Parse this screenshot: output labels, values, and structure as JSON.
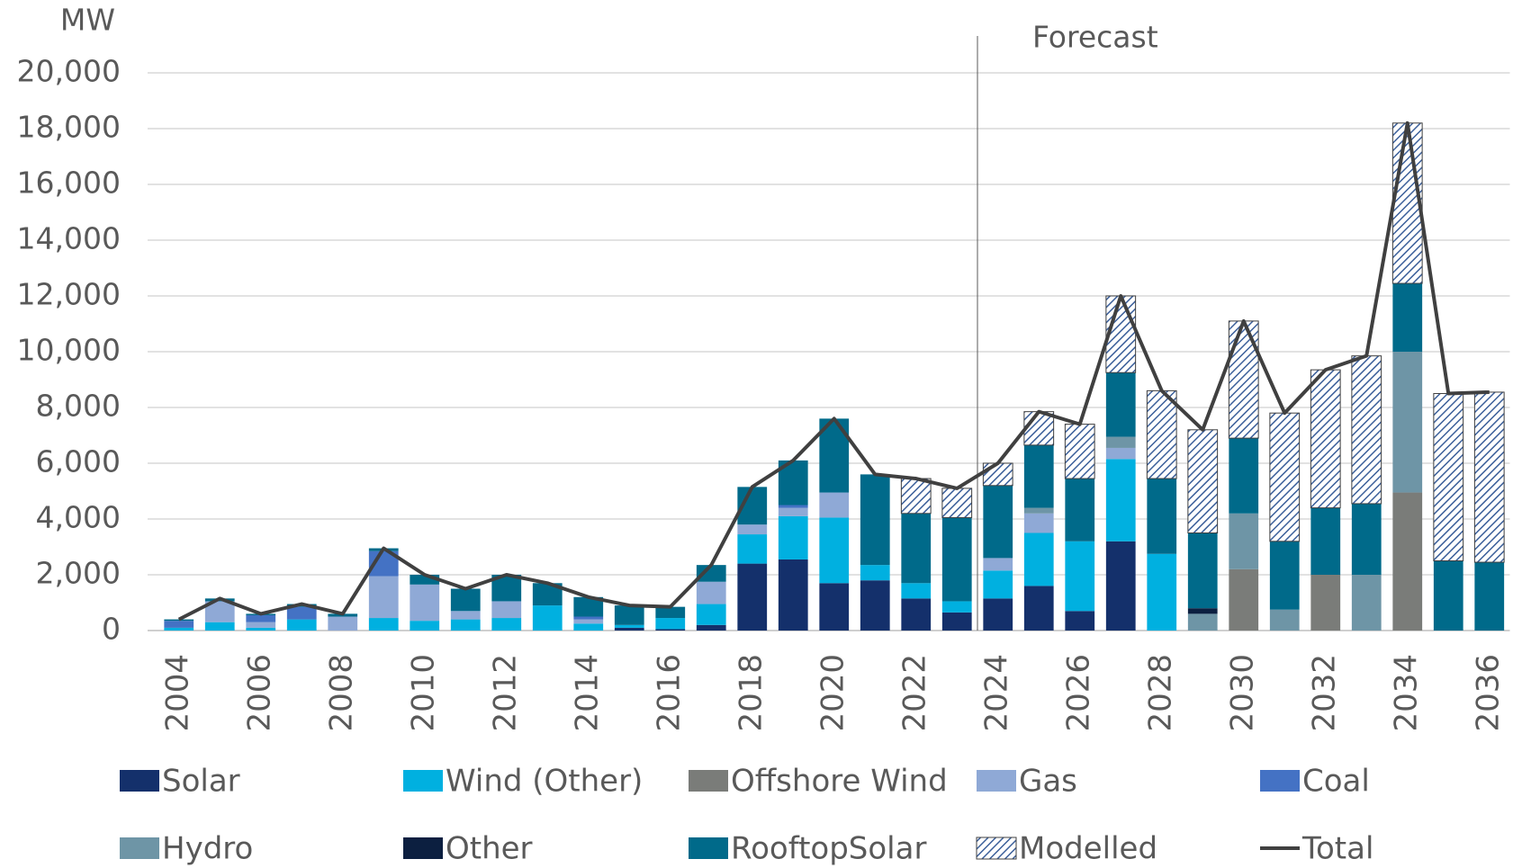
{
  "chart_data": {
    "type": "bar",
    "stacked": true,
    "y_axis_label": "MW",
    "annotation": "Forecast",
    "categories": [
      "2004",
      null,
      "2006",
      null,
      "2008",
      null,
      "2010",
      null,
      "2012",
      null,
      "2014",
      null,
      "2016",
      null,
      "2018",
      null,
      "2020",
      null,
      "2022",
      null,
      "2024",
      null,
      "2026",
      null,
      "2028",
      null,
      "2030",
      null,
      "2032",
      null,
      "2034",
      null,
      "2036"
    ],
    "ylim": [
      0,
      20000
    ],
    "yticks": [
      0,
      {
        "value": 2000,
        "label": "2,000"
      },
      {
        "value": 4000,
        "label": "4,000"
      },
      {
        "value": 6000,
        "label": "6,000"
      },
      {
        "value": 8000,
        "label": "8,000"
      },
      {
        "value": 10000,
        "label": "10,000"
      },
      {
        "value": 12000,
        "label": "12,000"
      },
      {
        "value": 14000,
        "label": "14,000"
      },
      {
        "value": 16000,
        "label": "16,000"
      },
      {
        "value": 18000,
        "label": "18,000"
      },
      {
        "value": 20000,
        "label": "20,000"
      }
    ],
    "grid": true,
    "legend": "bottom",
    "series": [
      {
        "name": "Solar",
        "color": "#14306b",
        "values": [
          0,
          0,
          0,
          0,
          0,
          0,
          0,
          0,
          0,
          0,
          0,
          100,
          50,
          200,
          2400,
          2550,
          1700,
          1800,
          1150,
          650,
          1150,
          1600,
          700,
          3200,
          0,
          0,
          0,
          0,
          0,
          0,
          0,
          0,
          0
        ]
      },
      {
        "name": "Wind (Other)",
        "color": "#00b0e0",
        "values": [
          100,
          300,
          100,
          400,
          0,
          450,
          350,
          400,
          450,
          900,
          250,
          100,
          400,
          750,
          1050,
          1550,
          2350,
          550,
          550,
          400,
          1000,
          1900,
          2500,
          2950,
          2750,
          0,
          0,
          0,
          0,
          0,
          0,
          0,
          0
        ]
      },
      {
        "name": "Offshore Wind",
        "color": "#7a7c79",
        "values": [
          0,
          0,
          0,
          0,
          0,
          0,
          0,
          0,
          0,
          0,
          0,
          0,
          0,
          0,
          0,
          0,
          0,
          0,
          0,
          0,
          0,
          0,
          0,
          0,
          0,
          0,
          2200,
          0,
          2000,
          0,
          4950,
          0,
          0
        ]
      },
      {
        "name": "Gas",
        "color": "#8fa9d6",
        "values": [
          0,
          750,
          200,
          0,
          500,
          1500,
          1300,
          300,
          600,
          0,
          150,
          0,
          0,
          800,
          350,
          300,
          900,
          0,
          0,
          0,
          450,
          700,
          0,
          400,
          0,
          0,
          0,
          0,
          0,
          0,
          0,
          0,
          0
        ]
      },
      {
        "name": "Coal",
        "color": "#4472c4",
        "values": [
          250,
          0,
          250,
          450,
          0,
          900,
          0,
          0,
          0,
          0,
          100,
          0,
          0,
          0,
          0,
          100,
          0,
          0,
          0,
          0,
          0,
          0,
          0,
          0,
          0,
          0,
          0,
          0,
          0,
          0,
          0,
          0,
          0
        ]
      },
      {
        "name": "Hydro",
        "color": "#6e95a6",
        "values": [
          0,
          0,
          0,
          0,
          0,
          0,
          0,
          0,
          0,
          0,
          0,
          0,
          0,
          0,
          0,
          0,
          0,
          0,
          0,
          0,
          0,
          200,
          0,
          400,
          0,
          600,
          2000,
          750,
          0,
          2000,
          5050,
          0,
          0
        ]
      },
      {
        "name": "Other",
        "color": "#0c1f40",
        "values": [
          0,
          0,
          0,
          0,
          0,
          0,
          0,
          0,
          0,
          0,
          0,
          0,
          0,
          0,
          0,
          0,
          0,
          0,
          0,
          0,
          0,
          0,
          0,
          0,
          0,
          200,
          0,
          0,
          0,
          0,
          0,
          0,
          0
        ]
      },
      {
        "name": "RooftopSolar",
        "color": "#006a8a",
        "values": [
          50,
          100,
          50,
          100,
          100,
          100,
          350,
          800,
          950,
          800,
          700,
          700,
          400,
          600,
          1350,
          1600,
          2650,
          3250,
          2500,
          3000,
          2600,
          2250,
          2250,
          2300,
          2700,
          2700,
          2700,
          2450,
          2400,
          2550,
          2450,
          2500,
          2450
        ]
      },
      {
        "name": "Modelled",
        "color": "#3b5f9a",
        "pattern": "hatch",
        "values": [
          0,
          0,
          0,
          0,
          0,
          0,
          0,
          0,
          0,
          0,
          0,
          0,
          0,
          0,
          0,
          0,
          0,
          0,
          1250,
          1050,
          800,
          1200,
          1950,
          2750,
          3150,
          3700,
          4200,
          4600,
          4950,
          5300,
          5750,
          6000,
          6100
        ]
      },
      {
        "name": "Total",
        "type": "line",
        "color": "#404040",
        "values": [
          400,
          1150,
          600,
          950,
          600,
          2950,
          2000,
          1500,
          2000,
          1700,
          1200,
          900,
          850,
          2350,
          5150,
          6100,
          7600,
          5600,
          5450,
          5100,
          6000,
          7850,
          7400,
          12000,
          8600,
          7200,
          11100,
          7800,
          9350,
          9850,
          18200,
          8500,
          8550
        ]
      }
    ]
  }
}
